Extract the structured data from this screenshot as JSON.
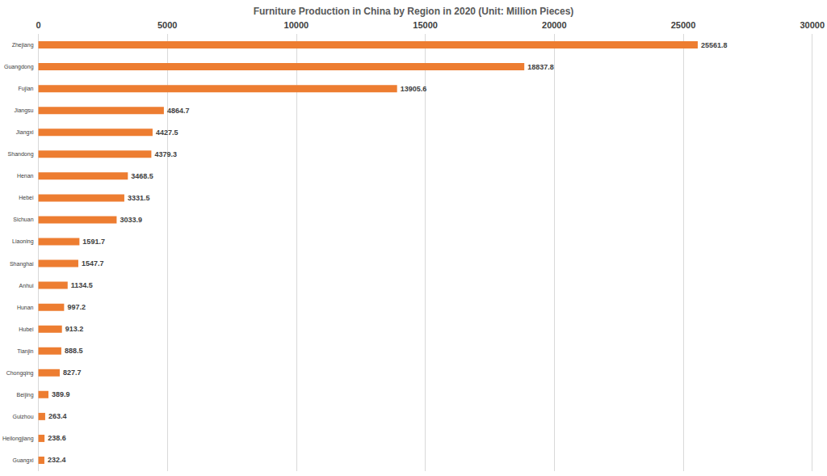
{
  "chart_data": {
    "type": "bar",
    "orientation": "horizontal",
    "title": "Furniture Production in China by Region in 2020 (Unit: Million Pieces)",
    "categories": [
      "Zhejiang",
      "Guangdong",
      "Fujian",
      "Jiangsu",
      "Jiangxi",
      "Shandong",
      "Henan",
      "Hebei",
      "Sichuan",
      "Liaoning",
      "Shanghai",
      "Anhui",
      "Hunan",
      "Hubei",
      "Tianjin",
      "Chongqing",
      "Beijing",
      "Guizhou",
      "Heilongjiang",
      "Guangxi"
    ],
    "values": [
      25561.8,
      18837.8,
      13905.6,
      4864.7,
      4427.5,
      4379.3,
      3468.5,
      3331.5,
      3033.9,
      1591.7,
      1547.7,
      1134.5,
      997.2,
      913.2,
      888.5,
      827.7,
      389.9,
      263.4,
      238.6,
      232.4
    ],
    "color": "#ed7d31",
    "xlim": [
      0,
      30000
    ],
    "xticks": [
      0,
      5000,
      10000,
      15000,
      20000,
      25000,
      30000
    ],
    "grid": true,
    "data_labels": true
  }
}
